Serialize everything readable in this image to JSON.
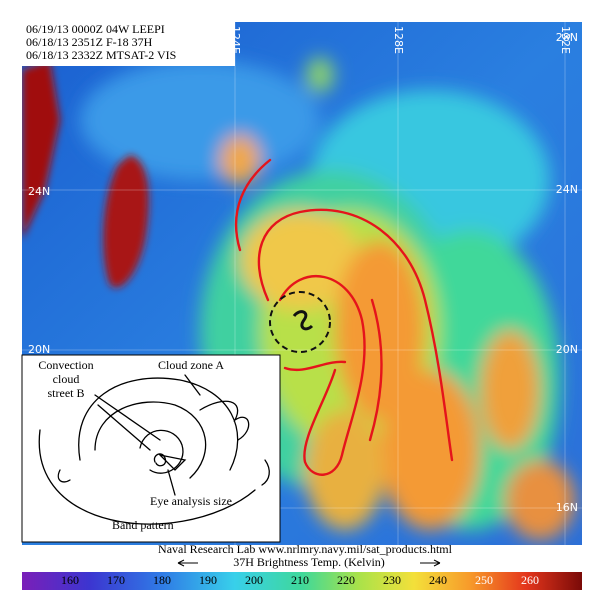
{
  "header": {
    "lines": [
      "06/19/13 0000Z 04W LEEPI",
      "06/18/13 2351Z F-18 37H",
      "06/18/13 2332Z MTSAT-2 VIS"
    ]
  },
  "map": {
    "latitude_labels_right": [
      "28N",
      "24N",
      "20N",
      "16N"
    ],
    "latitude_labels_left": [
      "24N",
      "20N"
    ],
    "longitude_labels": [
      "124E",
      "128E",
      "132E"
    ]
  },
  "inset": {
    "convection_label": [
      "Convection",
      "cloud",
      "street B"
    ],
    "cloud_zone_label": "Cloud zone A",
    "eye_label": "Eye analysis size",
    "band_label": "Band pattern"
  },
  "footer": {
    "source": "Naval Research Lab www.nrlmry.navy.mil/sat_products.html",
    "colorbar_label": "37H Brightness Temp. (Kelvin)",
    "colorbar_ticks": [
      160,
      170,
      180,
      190,
      200,
      210,
      220,
      230,
      240,
      250,
      260
    ]
  }
}
